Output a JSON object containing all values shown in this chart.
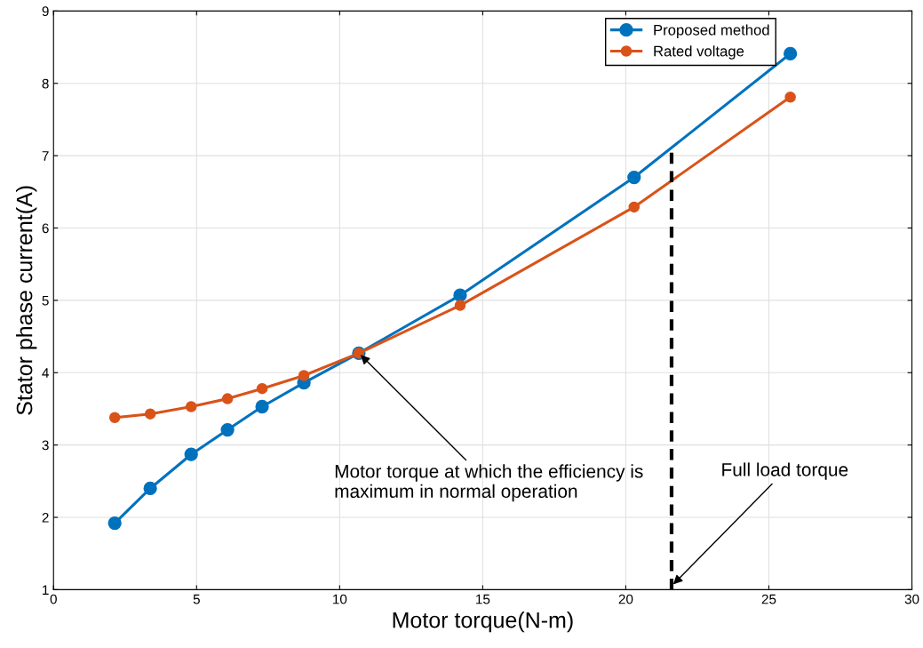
{
  "chart_data": {
    "type": "line",
    "xlabel": "Motor torque(N-m)",
    "ylabel": "Stator phase current(A)",
    "xlim": [
      0,
      30
    ],
    "xticks": [
      0,
      5,
      10,
      15,
      20,
      25,
      30
    ],
    "ylim": [
      1,
      9
    ],
    "yticks": [
      1,
      2,
      3,
      4,
      5,
      6,
      7,
      8,
      9
    ],
    "grid": true,
    "legend": "top right",
    "marker": "circle",
    "line_style": "solid",
    "series": [
      {
        "name": "Proposed method",
        "color": "#0072bd",
        "x": [
          2.14,
          3.38,
          4.81,
          6.08,
          7.29,
          8.75,
          10.67,
          14.21,
          20.29,
          25.75
        ],
        "values": [
          1.92,
          2.4,
          2.87,
          3.21,
          3.53,
          3.86,
          4.27,
          5.07,
          6.7,
          8.41
        ]
      },
      {
        "name": "Rated voltage",
        "color": "#d95319",
        "x": [
          2.14,
          3.38,
          4.81,
          6.08,
          7.29,
          8.75,
          10.67,
          14.21,
          20.29,
          25.75
        ],
        "values": [
          3.38,
          3.43,
          3.53,
          3.64,
          3.78,
          3.96,
          4.27,
          4.93,
          6.29,
          7.81
        ]
      },
      {
        "color": "#000000",
        "x": [
          21.6,
          21.6
        ],
        "values": [
          1,
          7.1
        ],
        "line_style": "dashed",
        "marker": "none"
      }
    ],
    "annotations": [
      {
        "text": "Motor torque at which the efficiency is\nmaximum in normal operation",
        "x": 10.67,
        "y": 4.27
      },
      {
        "text": "Full load torque",
        "x": 21.6,
        "y": 1.05
      }
    ]
  }
}
